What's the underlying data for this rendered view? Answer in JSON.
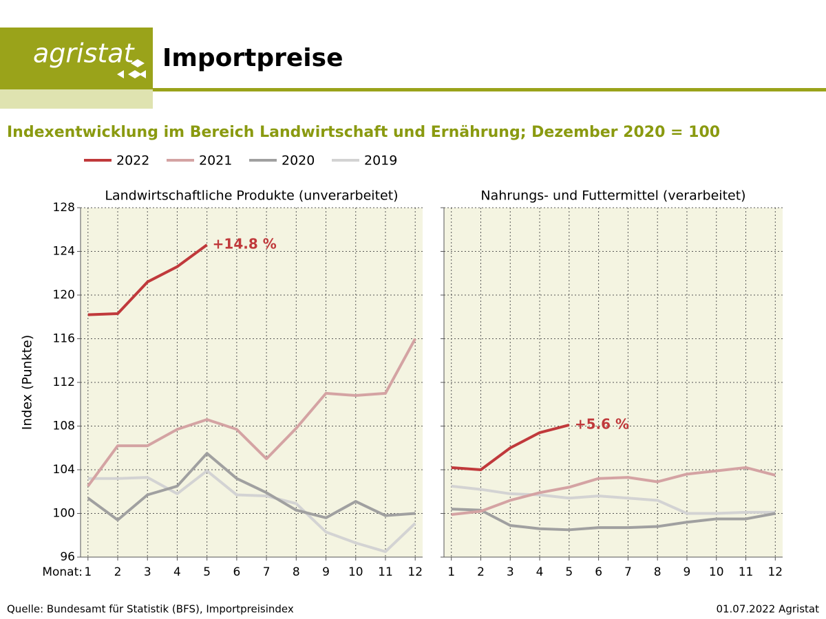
{
  "header": {
    "logo": "agristat",
    "title": "Importpreise"
  },
  "subtitle": "Indexentwicklung im Bereich Landwirtschaft und Ernährung; Dezember 2020 = 100",
  "footer": {
    "source": "Quelle: Bundesamt für Statistik (BFS), Importpreisindex",
    "date": "01.07.2022 Agristat"
  },
  "chart_data": [
    {
      "type": "line",
      "title": "Landwirtschaftliche Produkte (unverarbeitet)",
      "ylabel": "Index (Punkte)",
      "xlabel": "Monat:",
      "x": [
        1,
        2,
        3,
        4,
        5,
        6,
        7,
        8,
        9,
        10,
        11,
        12
      ],
      "xlim": [
        0.75,
        12.25
      ],
      "xticks": [
        1,
        2,
        3,
        4,
        5,
        6,
        7,
        8,
        9,
        10,
        11,
        12
      ],
      "ylim": [
        96,
        128
      ],
      "yticks": [
        96,
        100,
        104,
        108,
        112,
        116,
        120,
        124,
        128
      ],
      "grid": true,
      "annotation": "+14.8 %",
      "series": [
        {
          "name": "2022",
          "color": "#c0393b",
          "values": [
            118.2,
            118.3,
            121.2,
            122.6,
            124.6,
            null,
            null,
            null,
            null,
            null,
            null,
            null
          ]
        },
        {
          "name": "2021",
          "color": "#d4a3a3",
          "values": [
            102.5,
            106.2,
            106.2,
            107.7,
            108.6,
            107.7,
            105.0,
            107.8,
            111.0,
            110.8,
            111.0,
            116.0
          ]
        },
        {
          "name": "2020",
          "color": "#a0a0a0",
          "values": [
            101.4,
            99.4,
            101.7,
            102.5,
            105.5,
            103.2,
            101.9,
            100.3,
            99.6,
            101.1,
            99.8,
            100.0
          ]
        },
        {
          "name": "2019",
          "color": "#d3d3d3",
          "values": [
            103.2,
            103.2,
            103.3,
            101.8,
            103.9,
            101.7,
            101.6,
            100.9,
            98.3,
            97.3,
            96.5,
            99.1
          ]
        }
      ]
    },
    {
      "type": "line",
      "title": "Nahrungs- und Futtermittel (verarbeitet)",
      "x": [
        1,
        2,
        3,
        4,
        5,
        6,
        7,
        8,
        9,
        10,
        11,
        12
      ],
      "xlim": [
        0.75,
        12.25
      ],
      "xticks": [
        1,
        2,
        3,
        4,
        5,
        6,
        7,
        8,
        9,
        10,
        11,
        12
      ],
      "ylim": [
        96,
        128
      ],
      "yticks": [
        96,
        100,
        104,
        108,
        112,
        116,
        120,
        124,
        128
      ],
      "grid": true,
      "annotation": "+5.6 %",
      "series": [
        {
          "name": "2022",
          "color": "#c0393b",
          "values": [
            104.2,
            104.0,
            106.0,
            107.4,
            108.1,
            null,
            null,
            null,
            null,
            null,
            null,
            null
          ]
        },
        {
          "name": "2021",
          "color": "#d4a3a3",
          "values": [
            99.9,
            100.2,
            101.2,
            101.9,
            102.4,
            103.2,
            103.3,
            102.9,
            103.6,
            103.9,
            104.2,
            103.5
          ]
        },
        {
          "name": "2020",
          "color": "#a0a0a0",
          "values": [
            100.4,
            100.3,
            98.9,
            98.6,
            98.5,
            98.7,
            98.7,
            98.8,
            99.2,
            99.5,
            99.5,
            100.0
          ]
        },
        {
          "name": "2019",
          "color": "#d3d3d3",
          "values": [
            102.5,
            102.2,
            101.8,
            101.7,
            101.4,
            101.6,
            101.4,
            101.2,
            100.0,
            100.0,
            100.1,
            100.1
          ]
        }
      ]
    }
  ]
}
